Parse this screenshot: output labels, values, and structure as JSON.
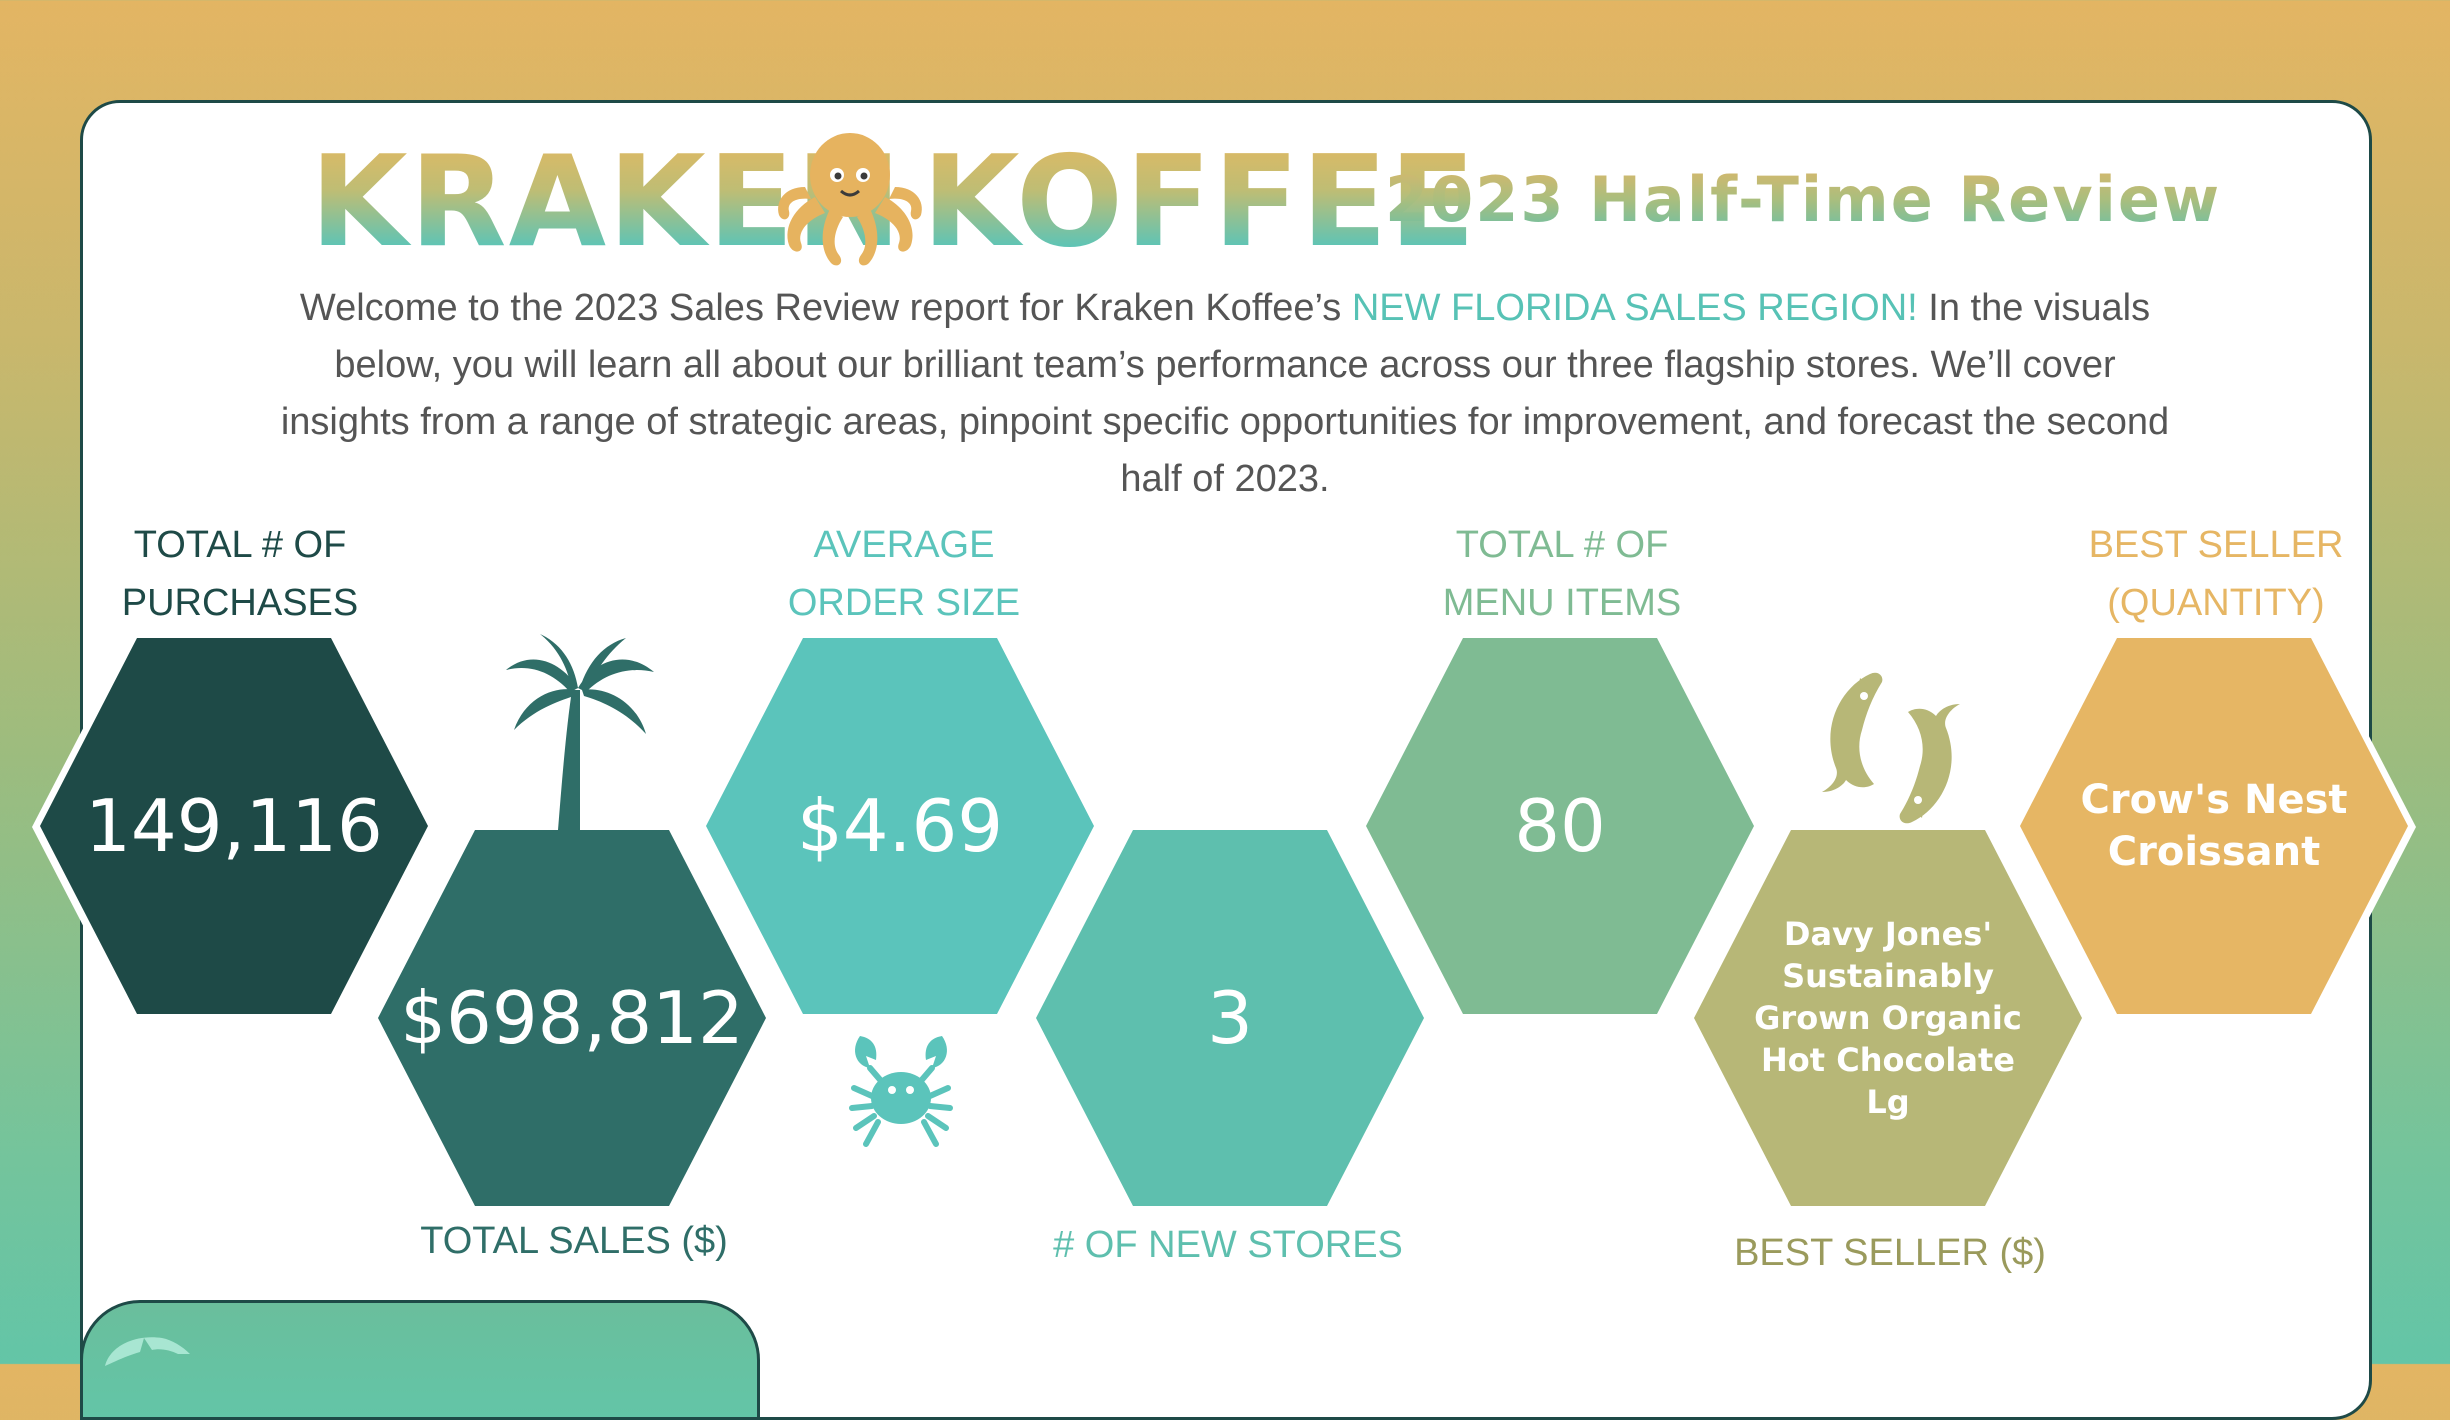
{
  "colors": {
    "dark_teal": "#1E4A47",
    "teal": "#2F6E68",
    "aqua": "#5BC4BB",
    "sea_green": "#5EBFAE",
    "sage": "#7FBB93",
    "olive": "#B7B777",
    "gold": "#E6B664",
    "text_gray": "#555555"
  },
  "header": {
    "brand_left": "KRAKEN",
    "brand_right": "KOFFEE",
    "logo_icon": "octopus-icon",
    "subtitle": "2023 Half-Time Review"
  },
  "intro": {
    "part1": "Welcome to the 2023 Sales Review report for Kraken Koffee’s ",
    "highlight": "NEW FLORIDA SALES REGION!",
    "part2": " In the visuals below, you will learn all about our brilliant team’s performance across our three flagship stores. We’ll cover insights from a range of strategic areas, pinpoint specific opportunities for improvement, and forecast the second half of 2023."
  },
  "kpis": {
    "purchases": {
      "label_line1": "TOTAL # OF",
      "label_line2": "PURCHASES",
      "value": "149,116"
    },
    "sales": {
      "label": "TOTAL SALES ($)",
      "value": "$698,812"
    },
    "avg_order": {
      "label_line1": "AVERAGE",
      "label_line2": "ORDER SIZE",
      "value": "$4.69"
    },
    "new_stores": {
      "label": "# OF NEW STORES",
      "value": "3"
    },
    "menu_items": {
      "label_line1": "TOTAL # OF",
      "label_line2": "MENU ITEMS",
      "value": "80"
    },
    "best_seller_dollars": {
      "label": "BEST SELLER ($)",
      "value": "Davy Jones' Sustainably Grown Organic Hot Chocolate Lg"
    },
    "best_seller_qty": {
      "label_line1": "BEST SELLER",
      "label_line2": "(QUANTITY)",
      "value_line1": "Crow's Nest",
      "value_line2": "Croissant"
    }
  },
  "decorations": [
    "palm-tree-icon",
    "crab-icon",
    "fish-pair-icon",
    "dolphin-icon"
  ]
}
